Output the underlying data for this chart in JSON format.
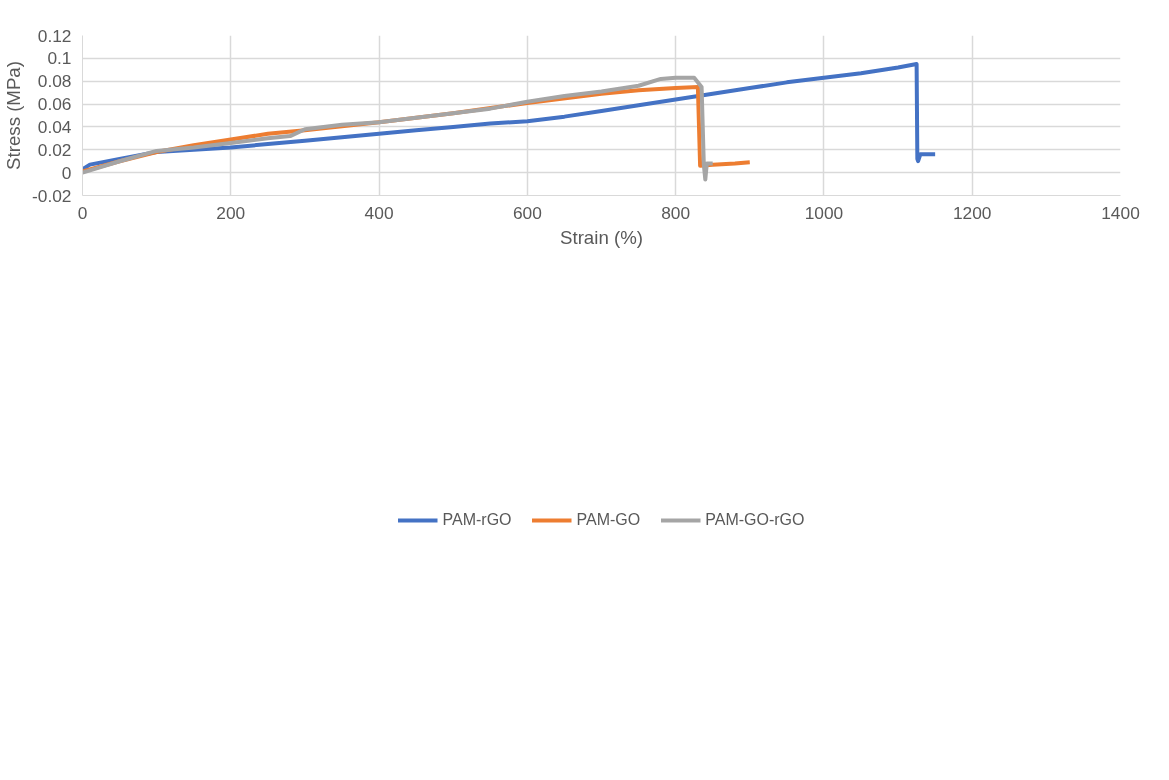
{
  "chart_data": {
    "type": "line",
    "xlabel": "Strain (%)",
    "ylabel": "Stress (MPa)",
    "xlim": [
      0,
      1400
    ],
    "xticks": [
      0,
      200,
      400,
      600,
      800,
      1000,
      1200,
      1400
    ],
    "ylim": [
      -0.02,
      0.12
    ],
    "yticks": [
      -0.02,
      0,
      0.02,
      0.04,
      0.06,
      0.08,
      0.1,
      0.12
    ],
    "grid": true,
    "legend": "bottom",
    "marker": "none",
    "line_style": "solid",
    "series": [
      {
        "name": "PAM-rGO",
        "color": "#4472c4",
        "x": [
          0,
          10,
          50,
          100,
          150,
          200,
          250,
          300,
          350,
          400,
          450,
          500,
          550,
          600,
          650,
          700,
          750,
          800,
          850,
          900,
          950,
          1000,
          1050,
          1100,
          1125,
          1126,
          1127,
          1130,
          1150
        ],
        "values": [
          0.003,
          0.007,
          0.012,
          0.018,
          0.02,
          0.022,
          0.025,
          0.028,
          0.031,
          0.034,
          0.037,
          0.04,
          0.043,
          0.045,
          0.049,
          0.054,
          0.059,
          0.064,
          0.069,
          0.074,
          0.079,
          0.083,
          0.087,
          0.092,
          0.095,
          0.012,
          0.01,
          0.016,
          0.016
        ]
      },
      {
        "name": "PAM-GO",
        "color": "#ed7d31",
        "x": [
          0,
          50,
          100,
          150,
          200,
          250,
          300,
          400,
          500,
          600,
          700,
          750,
          800,
          830,
          833,
          850,
          880,
          900
        ],
        "values": [
          0.001,
          0.01,
          0.018,
          0.024,
          0.029,
          0.034,
          0.037,
          0.044,
          0.052,
          0.061,
          0.069,
          0.072,
          0.074,
          0.075,
          0.006,
          0.007,
          0.008,
          0.009
        ]
      },
      {
        "name": "PAM-GO-rGO",
        "color": "#a5a5a5",
        "x": [
          0,
          20,
          50,
          100,
          150,
          200,
          250,
          280,
          300,
          350,
          400,
          450,
          500,
          550,
          600,
          650,
          700,
          750,
          780,
          800,
          825,
          835,
          838,
          840,
          842,
          850
        ],
        "values": [
          0.0,
          0.004,
          0.01,
          0.019,
          0.022,
          0.026,
          0.03,
          0.032,
          0.038,
          0.042,
          0.044,
          0.048,
          0.052,
          0.056,
          0.062,
          0.067,
          0.071,
          0.076,
          0.082,
          0.083,
          0.083,
          0.075,
          0.007,
          -0.006,
          0.008,
          0.008
        ]
      }
    ]
  }
}
